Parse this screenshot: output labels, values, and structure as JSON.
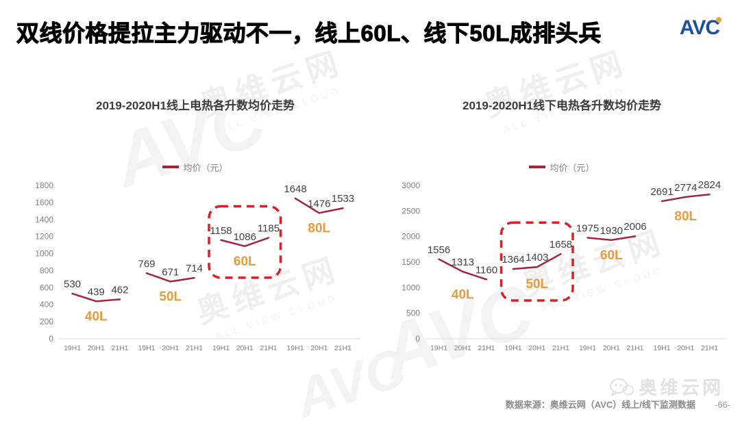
{
  "page": {
    "title": "双线价格提拉主力驱动不一，线上60L、线下50L成排头兵",
    "source_note": "数据来源：奥维云网（AVC）线上/线下监测数据",
    "page_number": "-66-",
    "brand": {
      "logo_text": "AVC",
      "footer_logo_text": "奥维云网"
    },
    "watermark": {
      "text": "奥维云网",
      "subtext": "ALL VIEW CLOUD",
      "logo": "AVC"
    }
  },
  "colors": {
    "line": "#A32638",
    "highlight_box": "#D2232A",
    "group_label": "#E89B3C",
    "brand_blue": "#1B4F9F",
    "brand_dot": "#E8A33B"
  },
  "chart_data": [
    {
      "type": "line",
      "title": "2019-2020H1线上电热各升数均价走势",
      "legend": "均价（元）",
      "ylim": [
        0,
        1800
      ],
      "yticks": [
        0,
        200,
        400,
        600,
        800,
        1000,
        1200,
        1400,
        1600,
        1800
      ],
      "x_labels": [
        "19H1",
        "20H1",
        "21H1"
      ],
      "grid": false,
      "legend_position": "top-center",
      "series": [
        {
          "name": "40L",
          "values": [
            530,
            439,
            462
          ],
          "highlight": false
        },
        {
          "name": "50L",
          "values": [
            769,
            671,
            714
          ],
          "highlight": false
        },
        {
          "name": "60L",
          "values": [
            1158,
            1086,
            1185
          ],
          "highlight": true
        },
        {
          "name": "80L",
          "values": [
            1648,
            1476,
            1533
          ],
          "highlight": false
        }
      ]
    },
    {
      "type": "line",
      "title": "2019-2020H1线下电热各升数均价走势",
      "legend": "均价（元）",
      "ylim": [
        0,
        3000
      ],
      "yticks": [
        0,
        500,
        1000,
        1500,
        2000,
        2500,
        3000
      ],
      "x_labels": [
        "19H1",
        "20H1",
        "21H1"
      ],
      "grid": false,
      "legend_position": "top-center",
      "series": [
        {
          "name": "40L",
          "values": [
            1556,
            1313,
            1160
          ],
          "highlight": false
        },
        {
          "name": "50L",
          "values": [
            1364,
            1403,
            1658
          ],
          "highlight": true
        },
        {
          "name": "60L",
          "values": [
            1975,
            1930,
            2006
          ],
          "highlight": false
        },
        {
          "name": "80L",
          "values": [
            2691,
            2774,
            2824
          ],
          "highlight": false
        }
      ]
    }
  ]
}
